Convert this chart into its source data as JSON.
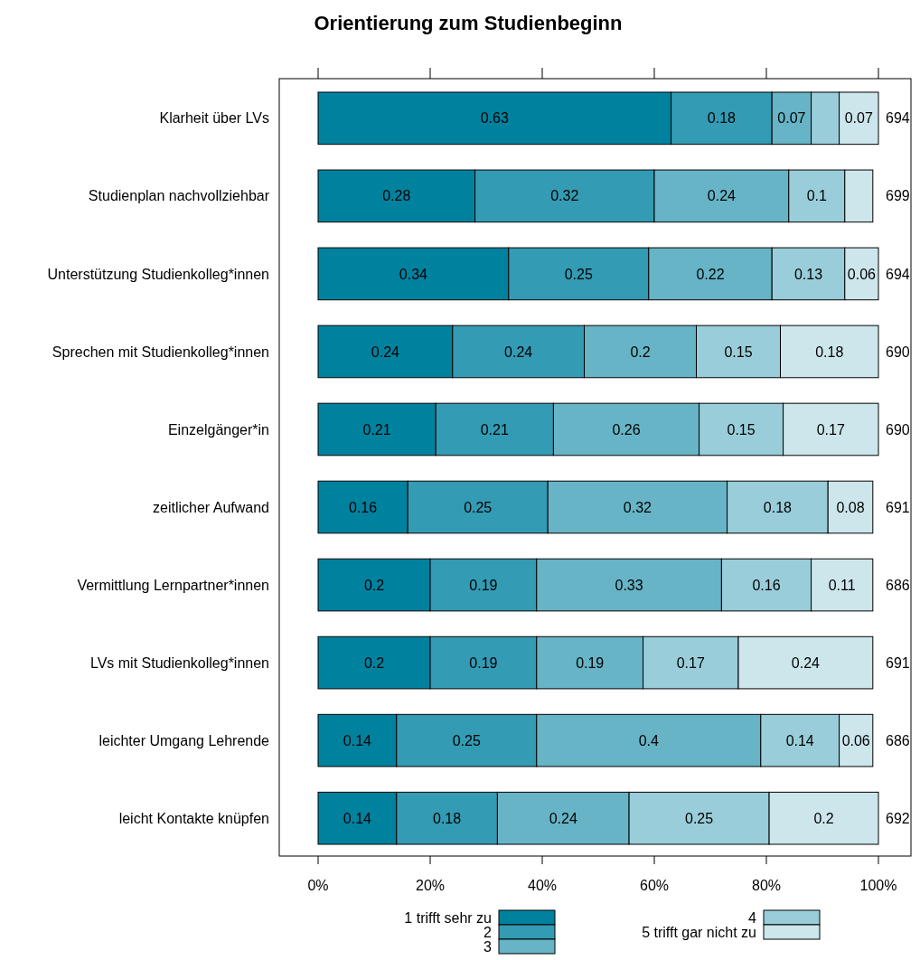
{
  "chart_data": {
    "type": "bar",
    "orientation": "horizontal",
    "stacked": true,
    "title": "Orientierung zum Studienbeginn",
    "categories": [
      "Klarheit über LVs",
      "Studienplan nachvollziehbar",
      "Unterstützung Studienkolleg*innen",
      "Sprechen mit Studienkolleg*innen",
      "Einzelgänger*in",
      "zeitlicher Aufwand",
      "Vermittlung Lernpartner*innen",
      "LVs mit Studienkolleg*innen",
      "leichter Umgang Lehrende",
      "leicht Kontakte knüpfen"
    ],
    "series": [
      {
        "name": "1 trifft sehr zu",
        "color": "#00829f",
        "values": [
          0.63,
          0.28,
          0.34,
          0.24,
          0.21,
          0.16,
          0.2,
          0.2,
          0.14,
          0.14
        ],
        "value_labels": [
          "0.63",
          "0.28",
          "0.34",
          "0.24",
          "0.21",
          "0.16",
          "0.2",
          "0.2",
          "0.14",
          "0.14"
        ]
      },
      {
        "name": "2",
        "color": "#339bb3",
        "values": [
          0.18,
          0.32,
          0.25,
          0.235,
          0.21,
          0.25,
          0.19,
          0.19,
          0.25,
          0.18
        ],
        "value_labels": [
          "0.18",
          "0.32",
          "0.25",
          "0.24",
          "0.21",
          "0.25",
          "0.19",
          "0.19",
          "0.25",
          "0.18"
        ]
      },
      {
        "name": "3",
        "color": "#66b4c6",
        "values": [
          0.07,
          0.24,
          0.22,
          0.2,
          0.26,
          0.32,
          0.33,
          0.19,
          0.4,
          0.235
        ],
        "value_labels": [
          "0.07",
          "0.24",
          "0.22",
          "0.2",
          "0.26",
          "0.32",
          "0.33",
          "0.19",
          "0.4",
          "0.24"
        ]
      },
      {
        "name": "4",
        "color": "#99cdd9",
        "values": [
          0.05,
          0.1,
          0.13,
          0.15,
          0.15,
          0.18,
          0.16,
          0.17,
          0.14,
          0.25
        ],
        "value_labels": [
          null,
          "0.1",
          "0.13",
          "0.15",
          "0.15",
          "0.18",
          "0.16",
          "0.17",
          "0.14",
          "0.25"
        ]
      },
      {
        "name": "5 trifft gar nicht zu",
        "color": "#cce6ec",
        "values": [
          0.07,
          0.05,
          0.06,
          0.175,
          0.17,
          0.08,
          0.11,
          0.24,
          0.06,
          0.195
        ],
        "value_labels": [
          "0.07",
          null,
          "0.06",
          "0.18",
          "0.17",
          "0.08",
          "0.11",
          "0.24",
          "0.06",
          "0.2"
        ]
      }
    ],
    "annotations": [
      "694",
      "699",
      "694",
      "690",
      "690",
      "691",
      "686",
      "691",
      "686",
      "692"
    ],
    "xlim": [
      0,
      1
    ],
    "xticks": [
      {
        "value": 0,
        "label": "0%"
      },
      {
        "value": 0.2,
        "label": "20%"
      },
      {
        "value": 0.4,
        "label": "40%"
      },
      {
        "value": 0.6,
        "label": "60%"
      },
      {
        "value": 0.8,
        "label": "80%"
      },
      {
        "value": 1,
        "label": "100%"
      }
    ],
    "legend": "bottom"
  }
}
